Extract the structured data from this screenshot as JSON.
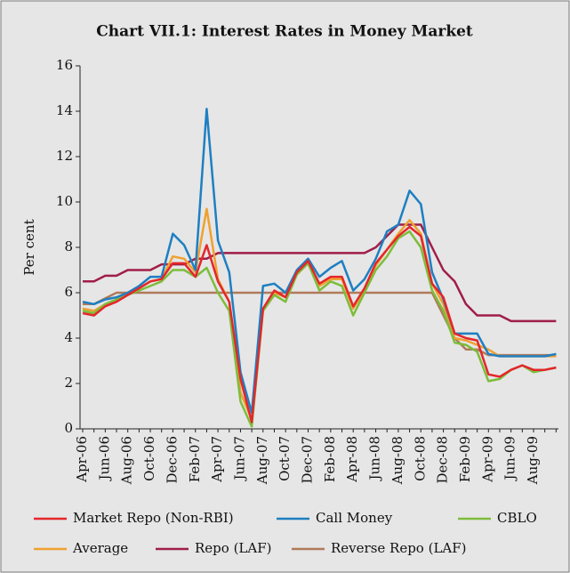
{
  "chart_data": {
    "type": "line",
    "title": "Chart VII.1: Interest Rates in Money Market",
    "y_label": "Per cent",
    "categories": [
      "Apr-06",
      null,
      "Jun-06",
      null,
      "Aug-06",
      null,
      "Oct-06",
      null,
      "Dec-06",
      null,
      "Feb-07",
      null,
      "Apr-07",
      null,
      "Jun-07",
      null,
      "Aug-07",
      null,
      "Oct-07",
      null,
      "Dec-07",
      null,
      "Feb-08",
      null,
      "Apr-08",
      null,
      "Jun-08",
      null,
      "Aug-08",
      null,
      "Oct-08",
      null,
      "Dec-08",
      null,
      "Feb-09",
      null,
      "Apr-09",
      null,
      "Jun-09",
      null,
      "Aug-09",
      null,
      null
    ],
    "ylim": [
      0,
      16
    ],
    "yticks": [
      0,
      2,
      4,
      6,
      8,
      10,
      12,
      14,
      16
    ],
    "grid": false,
    "legend": "bottom",
    "series": [
      {
        "name": "Market Repo (Non-RBI)",
        "color": "#e4262b",
        "values": [
          5.1,
          5.0,
          5.4,
          5.6,
          5.9,
          6.2,
          6.5,
          6.6,
          7.3,
          7.3,
          6.7,
          8.1,
          6.5,
          5.6,
          2.2,
          0.3,
          5.3,
          6.1,
          5.8,
          6.9,
          7.4,
          6.4,
          6.7,
          6.7,
          5.4,
          6.2,
          7.3,
          7.9,
          8.5,
          8.9,
          8.5,
          6.4,
          5.8,
          4.2,
          4.0,
          3.9,
          2.4,
          2.3,
          2.6,
          2.8,
          2.6,
          2.6,
          2.7
        ]
      },
      {
        "name": "Call Money",
        "color": "#1e7fc2",
        "values": [
          5.6,
          5.5,
          5.7,
          5.8,
          6.0,
          6.3,
          6.7,
          6.7,
          8.6,
          8.1,
          7.0,
          14.1,
          8.3,
          6.9,
          2.5,
          0.7,
          6.3,
          6.4,
          6.0,
          7.0,
          7.5,
          6.7,
          7.1,
          7.4,
          6.1,
          6.6,
          7.5,
          8.7,
          9.0,
          10.5,
          9.9,
          6.9,
          5.7,
          4.2,
          4.2,
          4.2,
          3.3,
          3.2,
          3.2,
          3.2,
          3.2,
          3.2,
          3.3
        ]
      },
      {
        "name": "CBLO",
        "color": "#7cbd3b",
        "values": [
          5.2,
          5.1,
          5.5,
          5.7,
          5.9,
          6.1,
          6.3,
          6.5,
          7.0,
          7.0,
          6.7,
          7.1,
          6.0,
          5.2,
          1.2,
          0.1,
          5.2,
          5.9,
          5.6,
          6.8,
          7.3,
          6.1,
          6.5,
          6.3,
          5.0,
          6.0,
          7.0,
          7.6,
          8.4,
          8.7,
          8.0,
          6.1,
          5.2,
          3.8,
          3.7,
          3.4,
          2.1,
          2.2,
          2.6,
          2.8,
          2.5,
          2.6,
          2.7
        ]
      },
      {
        "name": "Average",
        "color": "#f0a030",
        "values": [
          5.3,
          5.2,
          5.5,
          5.7,
          6.0,
          6.2,
          6.5,
          6.6,
          7.6,
          7.5,
          6.9,
          9.7,
          6.6,
          5.6,
          1.6,
          0.4,
          5.3,
          6.0,
          5.8,
          6.9,
          7.4,
          6.3,
          6.6,
          6.6,
          5.3,
          6.1,
          7.2,
          7.9,
          8.6,
          9.2,
          8.6,
          6.4,
          5.5,
          4.0,
          3.9,
          3.7,
          3.5,
          3.2,
          3.2,
          3.2,
          3.2,
          3.2,
          3.2
        ]
      },
      {
        "name": "Repo (LAF)",
        "color": "#a01e48",
        "values": [
          6.5,
          6.5,
          6.75,
          6.75,
          7.0,
          7.0,
          7.0,
          7.25,
          7.25,
          7.25,
          7.5,
          7.5,
          7.75,
          7.75,
          7.75,
          7.75,
          7.75,
          7.75,
          7.75,
          7.75,
          7.75,
          7.75,
          7.75,
          7.75,
          7.75,
          7.75,
          8.0,
          8.5,
          9.0,
          9.0,
          9.0,
          8.0,
          7.0,
          6.5,
          5.5,
          5.0,
          5.0,
          5.0,
          4.75,
          4.75,
          4.75,
          4.75,
          4.75
        ]
      },
      {
        "name": "Reverse Repo (LAF)",
        "color": "#b07a5a",
        "values": [
          5.5,
          5.5,
          5.75,
          6.0,
          6.0,
          6.0,
          6.0,
          6.0,
          6.0,
          6.0,
          6.0,
          6.0,
          6.0,
          6.0,
          6.0,
          6.0,
          6.0,
          6.0,
          6.0,
          6.0,
          6.0,
          6.0,
          6.0,
          6.0,
          6.0,
          6.0,
          6.0,
          6.0,
          6.0,
          6.0,
          6.0,
          6.0,
          5.0,
          4.0,
          3.5,
          3.5,
          3.25,
          3.25,
          3.25,
          3.25,
          3.25,
          3.25,
          3.25
        ]
      }
    ]
  }
}
